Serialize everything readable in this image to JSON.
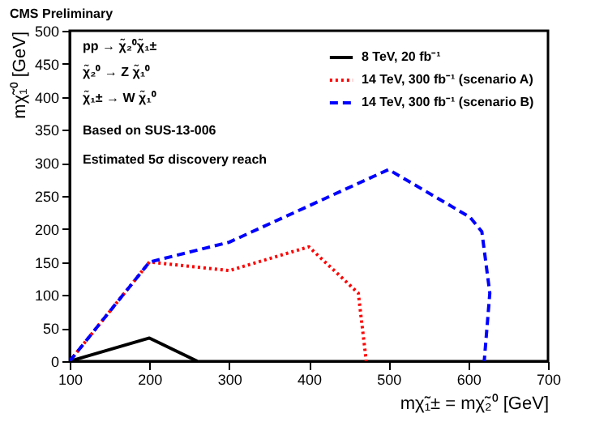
{
  "chart_data": {
    "type": "line",
    "title": "CMS Preliminary",
    "xlabel": "mχ̃₁± = mχ̃₂⁰ [GeV]",
    "ylabel": "mχ̃₁⁰ [GeV]",
    "annotations": [
      "pp → χ̃₂⁰χ̃₁±",
      "χ̃₂⁰ → Z χ̃₁⁰",
      "χ̃₁± → W χ̃₁⁰",
      "Based on SUS-13-006",
      "Estimated 5σ discovery reach"
    ],
    "series": [
      {
        "name": "8 TeV, 20 fb⁻¹",
        "color": "#000000",
        "line_style": "solid",
        "x": [
          100,
          200,
          260
        ],
        "values": [
          0,
          35,
          0
        ]
      },
      {
        "name": "14 TeV, 300 fb⁻¹ (scenario A)",
        "color": "#ff0000",
        "line_style": "dotted",
        "x": [
          100,
          200,
          300,
          400,
          462,
          472
        ],
        "values": [
          0,
          150,
          137,
          173,
          103,
          0
        ]
      },
      {
        "name": "14 TeV, 300 fb⁻¹ (scenario B)",
        "color": "#0000ff",
        "line_style": "dashed",
        "x": [
          100,
          200,
          300,
          500,
          602,
          617,
          627,
          620
        ],
        "values": [
          0,
          150,
          180,
          290,
          218,
          196,
          103,
          0
        ]
      }
    ],
    "xlim": [
      100,
      700
    ],
    "ylim": [
      0,
      500
    ],
    "xticks": [
      100,
      200,
      300,
      400,
      500,
      600,
      700
    ],
    "yticks": [
      0,
      50,
      100,
      150,
      200,
      250,
      300,
      350,
      400,
      450,
      500
    ],
    "grid": false,
    "legend": "top right",
    "marker": "none"
  }
}
